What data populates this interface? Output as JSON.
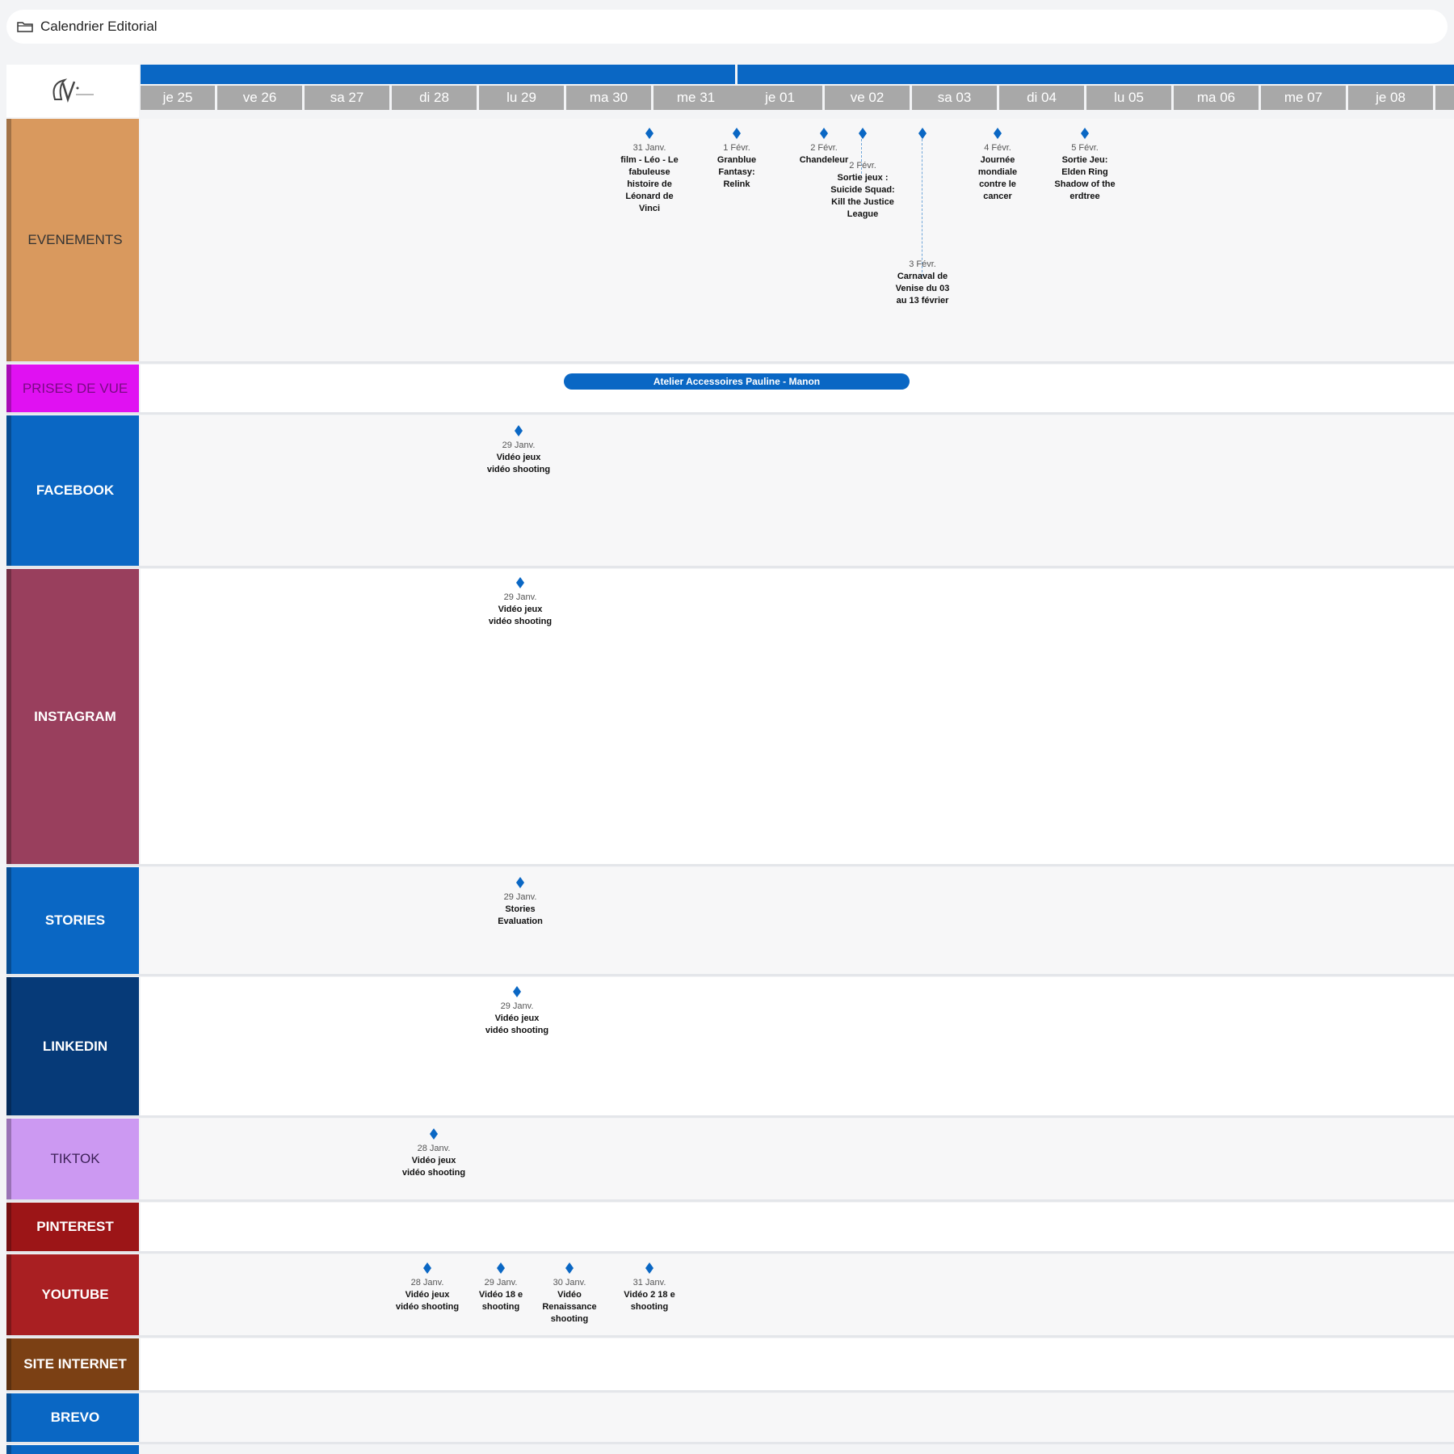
{
  "header": {
    "title": "Calendrier Editorial",
    "folder_icon": "folder-icon"
  },
  "logo": {
    "alt": "logo"
  },
  "colors": {
    "accent": "#0a67c4",
    "day_header": "#a8a8a8",
    "evenements": "#d9995e",
    "prises_de_vue": "#e011f2",
    "facebook": "#0a67c4",
    "instagram": "#993f5d",
    "stories": "#0a67c4",
    "linkedin": "#063a78",
    "tiktok": "#cc99f2",
    "pinterest": "#9c1517",
    "youtube": "#a91f22",
    "site_internet": "#7b4014",
    "brevo": "#0a67c4"
  },
  "days": [
    "je 25",
    "ve 26",
    "sa 27",
    "di 28",
    "lu 29",
    "ma 30",
    "me 31",
    "je 01",
    "ve 02",
    "sa 03",
    "di 04",
    "lu 05",
    "ma 06",
    "me 07",
    "je 08"
  ],
  "rows": {
    "evenements": "EVENEMENTS",
    "prises_de_vue": "PRISES DE VUE",
    "facebook": "FACEBOOK",
    "instagram": "INSTAGRAM",
    "stories": "STORIES",
    "linkedin": "LINKEDIN",
    "tiktok": "TIKTOK",
    "pinterest": "PINTEREST",
    "youtube": "YOUTUBE",
    "site_internet": "SITE INTERNET",
    "brevo": "BREVO"
  },
  "events": {
    "evenements": [
      {
        "date": "31 Janv.",
        "label": "film - Léo - Le fabuleuse histoire de Léonard de Vinci"
      },
      {
        "date": "1 Févr.",
        "label": "Granblue Fantasy: Relink"
      },
      {
        "date": "2 Févr.",
        "label": "Chandeleur"
      },
      {
        "date": "2 Févr.",
        "label": "Sortie jeux : Suicide Squad: Kill the Justice League"
      },
      {
        "date": "3 Févr.",
        "label": "Carnaval de Venise du 03 au 13 février"
      },
      {
        "date": "4 Févr.",
        "label": "Journée mondiale contre le cancer"
      },
      {
        "date": "5 Févr.",
        "label": "Sortie Jeu: Elden Ring Shadow of the erdtree"
      }
    ],
    "prises_de_vue": [
      {
        "label": "Atelier Accessoires Pauline - Manon"
      }
    ],
    "facebook": [
      {
        "date": "29 Janv.",
        "label": "Vidéo jeux vidéo shooting"
      }
    ],
    "instagram": [
      {
        "date": "29 Janv.",
        "label": "Vidéo jeux vidéo shooting"
      }
    ],
    "stories": [
      {
        "date": "29 Janv.",
        "label": "Stories Evaluation"
      }
    ],
    "linkedin": [
      {
        "date": "29 Janv.",
        "label": "Vidéo jeux vidéo shooting"
      }
    ],
    "tiktok": [
      {
        "date": "28 Janv.",
        "label": "Vidéo jeux vidéo shooting"
      }
    ],
    "youtube": [
      {
        "date": "28 Janv.",
        "label": "Vidéo jeux vidéo shooting"
      },
      {
        "date": "29 Janv.",
        "label": "Vidéo 18 e shooting"
      },
      {
        "date": "30 Janv.",
        "label": "Vidéo Renaissance shooting"
      },
      {
        "date": "31 Janv.",
        "label": "Vidéo 2 18 e shooting"
      }
    ]
  }
}
